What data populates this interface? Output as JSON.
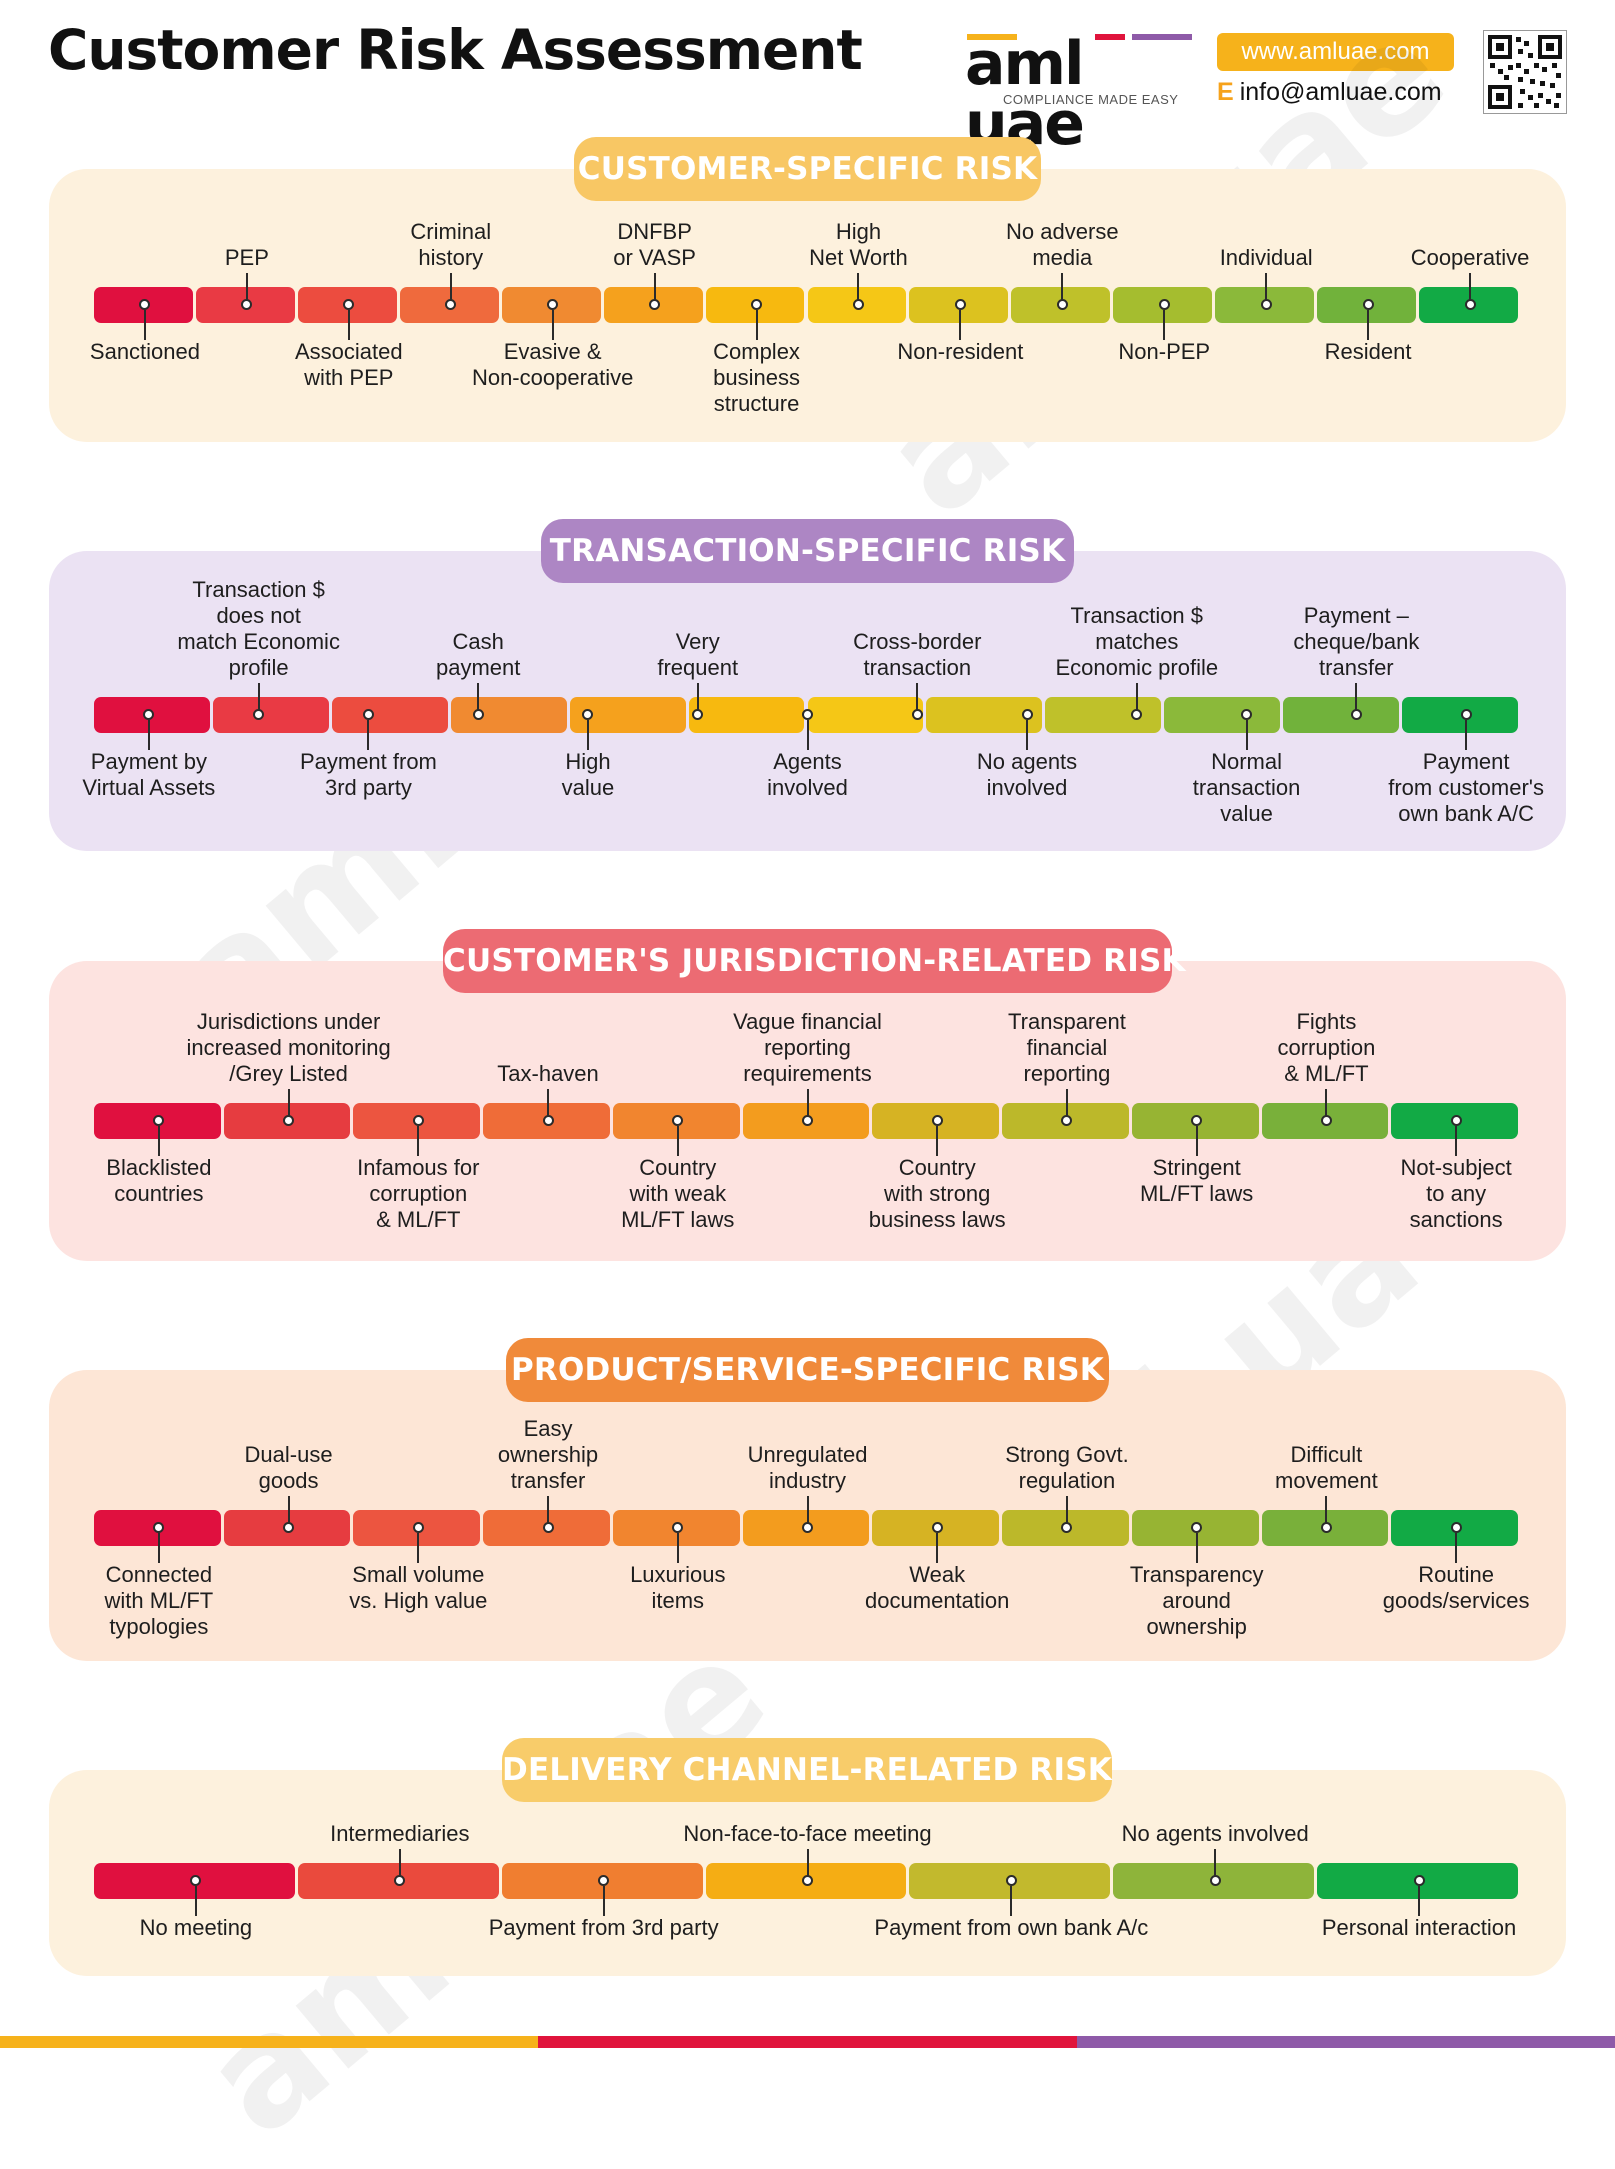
{
  "title": "Customer Risk Assessment",
  "brand": {
    "logo_text": "aml uae",
    "tagline": "COMPLIANCE MADE EASY",
    "website": "www.amluae.com",
    "email_prefix": "E",
    "email": "info@amluae.com",
    "logo_colors": [
      "#f6b21b",
      "#e0143c",
      "#8e5aa8"
    ]
  },
  "scale_colors": {
    "twelve": [
      "#e0103f",
      "#e93a44",
      "#ec4c3f",
      "#ef6a3d",
      "#f08a31",
      "#f5a11d",
      "#f7b90f",
      "#f5c716",
      "#dcc21f",
      "#bfc12a",
      "#a5bd2f",
      "#8bb93a",
      "#71b23b",
      "#12aa45"
    ],
    "eleven": [
      "#e0103f",
      "#e63c40",
      "#ec5540",
      "#ef6c38",
      "#f1852f",
      "#f39c1e",
      "#d6b323",
      "#bcb82a",
      "#97b433",
      "#79b03a",
      "#12aa45"
    ],
    "seven": [
      "#e0103f",
      "#ea4a3d",
      "#f07e30",
      "#f5ad14",
      "#c2b92d",
      "#8eb43a",
      "#12aa45"
    ]
  },
  "sections": [
    {
      "title": "CUSTOMER-SPECIFIC RISK",
      "pill_color": "#f8c764",
      "bg_color": "#fdf1dd",
      "top": [
        "PEP",
        "Criminal\nhistory",
        "DNFBP\nor VASP",
        "High\nNet Worth",
        "No adverse\nmedia",
        "Individual",
        "Cooperative"
      ],
      "bottom": [
        "Sanctioned",
        "Associated\nwith PEP",
        "Evasive &\nNon-cooperative",
        "Complex\nbusiness\nstructure",
        "Non-resident",
        "Non-PEP",
        "Resident"
      ]
    },
    {
      "title": "TRANSACTION-SPECIFIC RISK",
      "pill_color": "#ad86c4",
      "bg_color": "#ebe2f3",
      "top": [
        "Transaction $\ndoes not\nmatch Economic\nprofile",
        "Cash\npayment",
        "Very\nfrequent",
        "Cross-border\ntransaction",
        "Transaction $\nmatches\nEconomic profile",
        "Payment –\ncheque/bank\ntransfer"
      ],
      "bottom": [
        "Payment by\nVirtual Assets",
        "Payment from\n3rd party",
        "High\nvalue",
        "Agents\ninvolved",
        "No agents\ninvolved",
        "Normal\ntransaction\nvalue",
        "Payment\nfrom customer's\nown bank A/C"
      ]
    },
    {
      "title": "CUSTOMER'S JURISDICTION-RELATED RISK",
      "pill_color": "#ec6b73",
      "bg_color": "#fde3e0",
      "top": [
        "Jurisdictions under\nincreased monitoring\n/Grey Listed",
        "Tax-haven",
        "Vague financial\nreporting\nrequirements",
        "Transparent\nfinancial\nreporting",
        "Fights\ncorruption\n& ML/FT"
      ],
      "bottom": [
        "Blacklisted\ncountries",
        "Infamous for\ncorruption\n& ML/FT",
        "Country\nwith weak\nML/FT laws",
        "Country\nwith strong\nbusiness laws",
        "Stringent\nML/FT laws",
        "Not-subject\nto any\nsanctions"
      ]
    },
    {
      "title": "PRODUCT/SERVICE-SPECIFIC RISK",
      "pill_color": "#f08a3a",
      "bg_color": "#fde6d6",
      "top": [
        "Dual-use\ngoods",
        "Easy\nownership\ntransfer",
        "Unregulated\nindustry",
        "Strong Govt.\nregulation",
        "Difficult\nmovement"
      ],
      "bottom": [
        "Connected\nwith ML/FT\ntypologies",
        "Small volume\nvs. High value",
        "Luxurious\nitems",
        "Weak\ndocumentation",
        "Transparency\naround\nownership",
        "Routine\ngoods/services"
      ]
    },
    {
      "title": "DELIVERY CHANNEL-RELATED RISK",
      "pill_color": "#f8cc6a",
      "bg_color": "#fdf1dd",
      "top": [
        "Intermediaries",
        "Non-face-to-face meeting",
        "No agents involved"
      ],
      "bottom": [
        "No meeting",
        "Payment from 3rd party",
        "Payment from own bank A/c",
        "Personal interaction"
      ]
    }
  ],
  "footer_colors": [
    "#f6b21b",
    "#e0143c",
    "#8e5aa8"
  ]
}
